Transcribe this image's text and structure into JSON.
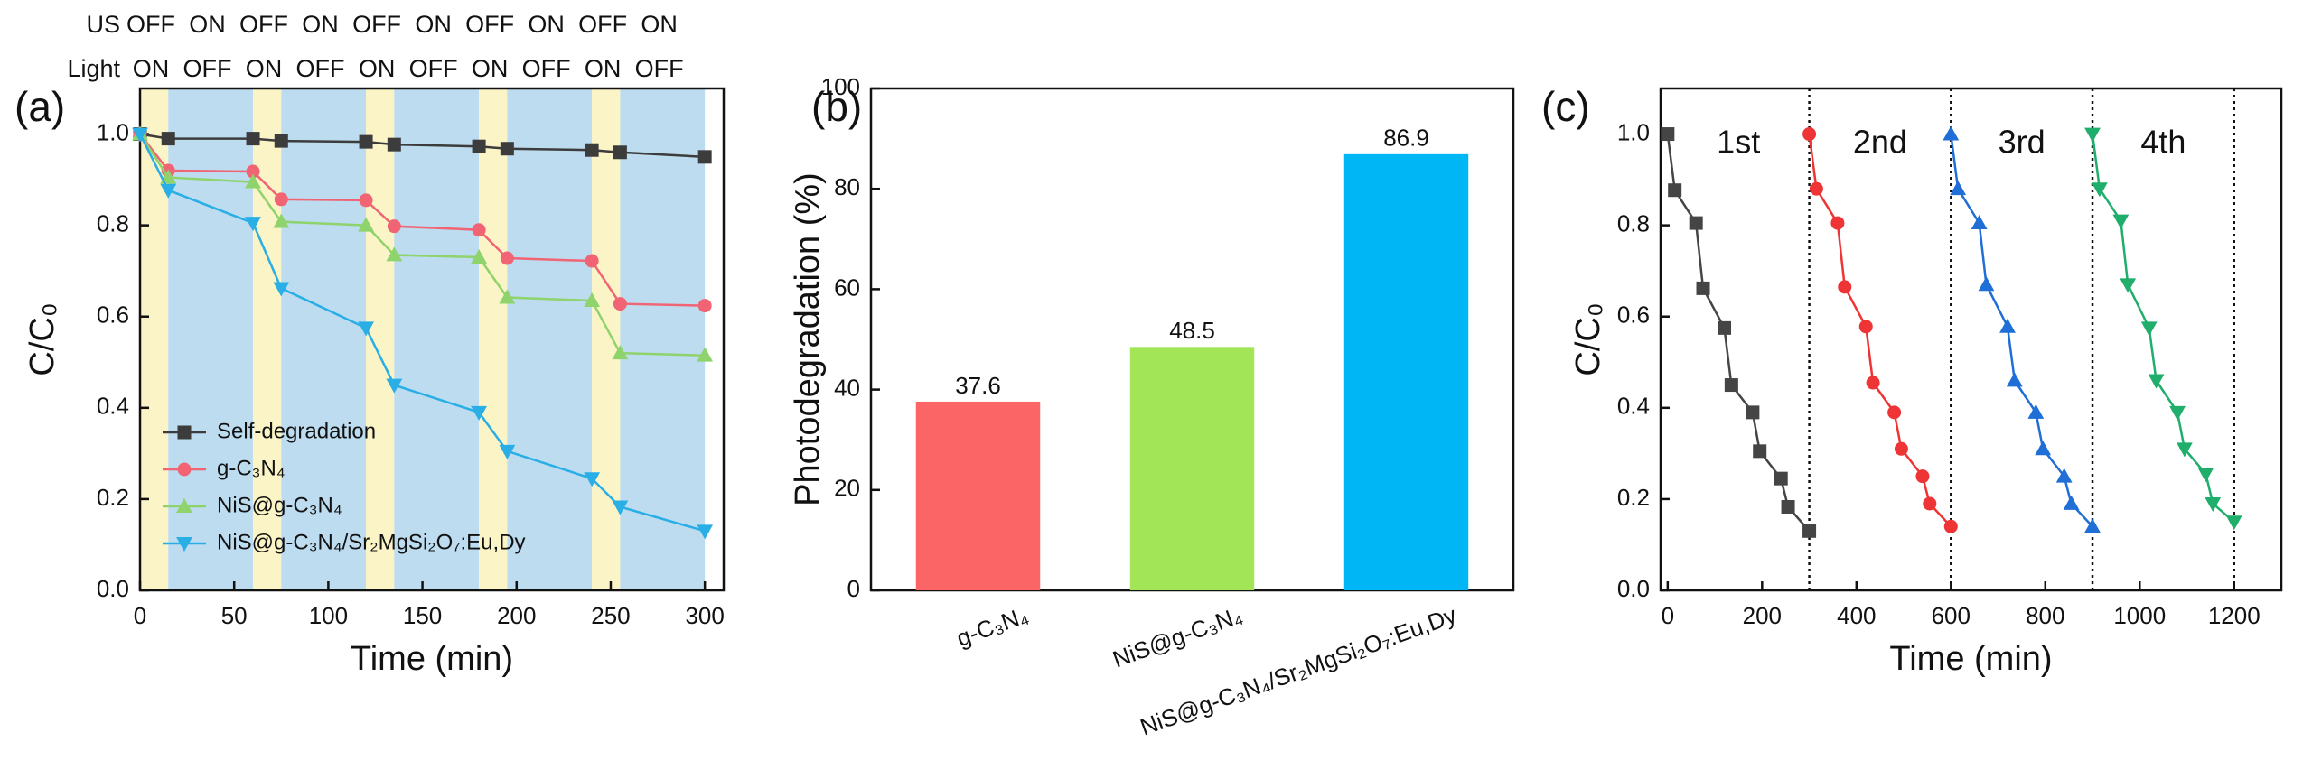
{
  "chart_data": [
    {
      "type": "line",
      "panel_label": "(a)",
      "x_label": "Time (min)",
      "y_label": "C/C₀",
      "top_rows": [
        {
          "label": "US",
          "states": [
            "OFF",
            "ON",
            "OFF",
            "ON",
            "OFF",
            "ON",
            "OFF",
            "ON",
            "OFF",
            "ON"
          ]
        },
        {
          "label": "Light",
          "states": [
            "ON",
            "OFF",
            "ON",
            "OFF",
            "ON",
            "OFF",
            "ON",
            "OFF",
            "ON",
            "OFF"
          ]
        }
      ],
      "bands": [
        {
          "from": 0,
          "to": 15,
          "color": "#fbf4c6"
        },
        {
          "from": 15,
          "to": 60,
          "color": "#bddcf0"
        },
        {
          "from": 60,
          "to": 75,
          "color": "#fbf4c6"
        },
        {
          "from": 75,
          "to": 120,
          "color": "#bddcf0"
        },
        {
          "from": 120,
          "to": 135,
          "color": "#fbf4c6"
        },
        {
          "from": 135,
          "to": 180,
          "color": "#bddcf0"
        },
        {
          "from": 180,
          "to": 195,
          "color": "#fbf4c6"
        },
        {
          "from": 195,
          "to": 240,
          "color": "#bddcf0"
        },
        {
          "from": 240,
          "to": 255,
          "color": "#fbf4c6"
        },
        {
          "from": 255,
          "to": 300,
          "color": "#bddcf0"
        }
      ],
      "x": [
        0,
        15,
        60,
        75,
        120,
        135,
        180,
        195,
        240,
        255,
        300
      ],
      "series": [
        {
          "name": "Self-degradation",
          "color": "#3c3c3c",
          "marker": "square",
          "values": [
            1.0,
            0.99,
            0.99,
            0.985,
            0.983,
            0.977,
            0.973,
            0.968,
            0.965,
            0.96,
            0.95
          ]
        },
        {
          "name": "g-C₃N₄",
          "color": "#f06474",
          "marker": "circle",
          "values": [
            1.0,
            0.92,
            0.918,
            0.857,
            0.855,
            0.798,
            0.79,
            0.728,
            0.722,
            0.628,
            0.624
          ]
        },
        {
          "name": "NiS@g-C₃N₄",
          "color": "#8ed36b",
          "marker": "triangle-up",
          "values": [
            1.0,
            0.905,
            0.895,
            0.808,
            0.8,
            0.735,
            0.73,
            0.642,
            0.635,
            0.52,
            0.515
          ]
        },
        {
          "name": "NiS@g-C₃N₄/Sr₂MgSi₂O₇:Eu,Dy",
          "color": "#29aee6",
          "marker": "triangle-down",
          "values": [
            1.0,
            0.877,
            0.805,
            0.662,
            0.575,
            0.45,
            0.39,
            0.305,
            0.245,
            0.183,
            0.13
          ]
        }
      ],
      "xlim": [
        0,
        310
      ],
      "xticks": [
        0,
        50,
        100,
        150,
        200,
        250,
        300
      ],
      "ylim": [
        0,
        1.1
      ],
      "yticks": [
        {
          "value": 0,
          "label": "0.0"
        },
        0.2,
        0.4,
        0.6,
        0.8,
        {
          "value": 1,
          "label": "1.0"
        }
      ],
      "legend": "lower left"
    },
    {
      "type": "bar",
      "panel_label": "(b)",
      "y_label": "Photodegradation (%)",
      "categories": [
        "g-C₃N₄",
        "NiS@g-C₃N₄",
        "NiS@g-C₃N₄/Sr₂MgSi₂O₇:Eu,Dy"
      ],
      "values": [
        37.6,
        48.5,
        86.9
      ],
      "colors": [
        "#fb6565",
        "#a2e658",
        "#00b6f5"
      ],
      "ylim": [
        0,
        100
      ],
      "yticks": [
        0,
        20,
        40,
        60,
        80,
        100
      ]
    },
    {
      "type": "line",
      "panel_label": "(c)",
      "x_label": "Time (min)",
      "y_label": "C/C₀",
      "dividers": [
        300,
        600,
        900,
        1200
      ],
      "series": [
        {
          "name": "1st",
          "color": "#454545",
          "marker": "square",
          "x": [
            0,
            15,
            60,
            75,
            120,
            135,
            180,
            195,
            240,
            255,
            300
          ],
          "values": [
            1.0,
            0.877,
            0.805,
            0.662,
            0.575,
            0.45,
            0.39,
            0.305,
            0.245,
            0.183,
            0.13
          ]
        },
        {
          "name": "2nd",
          "color": "#ee3434",
          "marker": "circle",
          "x": [
            300,
            315,
            360,
            375,
            420,
            435,
            480,
            495,
            540,
            555,
            600
          ],
          "values": [
            1.0,
            0.88,
            0.805,
            0.665,
            0.578,
            0.455,
            0.39,
            0.31,
            0.25,
            0.19,
            0.14
          ]
        },
        {
          "name": "3rd",
          "color": "#1f6fd6",
          "marker": "triangle-up",
          "x": [
            600,
            615,
            660,
            675,
            720,
            735,
            780,
            795,
            840,
            855,
            900
          ],
          "values": [
            1.0,
            0.88,
            0.805,
            0.67,
            0.578,
            0.46,
            0.39,
            0.31,
            0.25,
            0.19,
            0.14
          ]
        },
        {
          "name": "4th",
          "color": "#1fae6b",
          "marker": "triangle-down",
          "x": [
            900,
            915,
            960,
            975,
            1020,
            1035,
            1080,
            1095,
            1140,
            1155,
            1200
          ],
          "values": [
            1.0,
            0.88,
            0.81,
            0.67,
            0.575,
            0.46,
            0.39,
            0.31,
            0.255,
            0.19,
            0.15
          ]
        }
      ],
      "xlim": [
        -15,
        1300
      ],
      "xticks": [
        0,
        200,
        400,
        600,
        800,
        1000,
        1200
      ],
      "ylim": [
        0,
        1.1
      ],
      "yticks": [
        {
          "value": 0,
          "label": "0.0"
        },
        0.2,
        0.4,
        0.6,
        0.8,
        {
          "value": 1,
          "label": "1.0"
        }
      ]
    }
  ]
}
